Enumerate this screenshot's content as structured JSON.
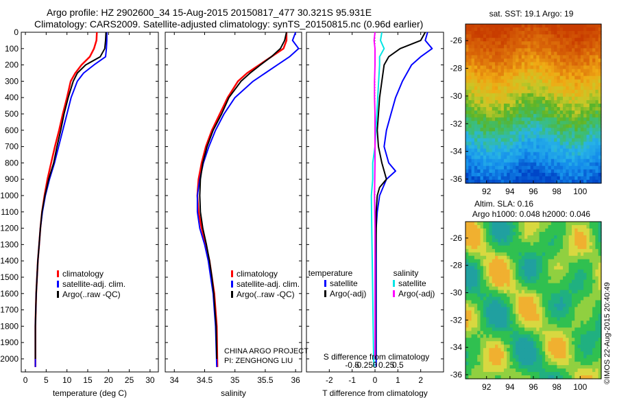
{
  "header": {
    "line1": "Argo profile: HZ 2902600_34 15-Aug-2015 20150817_477 30.321S 95.931E",
    "line2": "Climatology: CARS2009. Satellite-adjusted climatology: synTS_20150815.nc (0.96d earlier)"
  },
  "credit": {
    "project": "CHINA ARGO PROJECT",
    "pi": "PI: ZENGHONG LIU"
  },
  "copyright": "©IMOS 22-Aug-2015 20:40:49",
  "colors": {
    "climatology": "#ff0000",
    "satellite": "#0000ff",
    "argo": "#000000",
    "sal_satellite": "#00e5e5",
    "sal_argo": "#ff00ff"
  },
  "chart_data": [
    {
      "id": "temperature",
      "type": "line",
      "xlabel": "temperature (deg C)",
      "ylabel": "",
      "xlim": [
        -1,
        32
      ],
      "ylim": [
        2080,
        0
      ],
      "xticks": [
        0,
        5,
        10,
        15,
        20,
        25,
        30
      ],
      "yticks": [
        0,
        100,
        200,
        300,
        400,
        500,
        600,
        700,
        800,
        900,
        1000,
        1100,
        1200,
        1300,
        1400,
        1500,
        1600,
        1700,
        1800,
        1900,
        2000
      ],
      "legend": [
        "climatology",
        "satellite-adj. clim.",
        "Argo(..raw -QC)"
      ],
      "series": [
        {
          "name": "climatology",
          "color": "#ff0000",
          "x": [
            17.2,
            17.1,
            16.5,
            15.5,
            13.5,
            12.0,
            10.9,
            10.0,
            9.0,
            8.1,
            7.1,
            6.2,
            5.3,
            4.6,
            4.0,
            3.6,
            3.3,
            3.0,
            2.8,
            2.6,
            2.5,
            2.4,
            2.4
          ],
          "depth": [
            0,
            50,
            100,
            150,
            200,
            250,
            300,
            400,
            500,
            600,
            700,
            800,
            900,
            1000,
            1100,
            1200,
            1300,
            1400,
            1500,
            1600,
            1700,
            1800,
            2050
          ]
        },
        {
          "name": "satellite-adj. clim.",
          "color": "#0000ff",
          "x": [
            19.6,
            19.6,
            19.5,
            19.3,
            16.5,
            14.0,
            12.5,
            11.0,
            10.0,
            9.0,
            8.0,
            7.0,
            5.8,
            4.8,
            4.1,
            3.6,
            3.3,
            3.0,
            2.8,
            2.6,
            2.5,
            2.4,
            2.4
          ],
          "depth": [
            0,
            50,
            100,
            150,
            200,
            250,
            300,
            400,
            500,
            600,
            700,
            800,
            900,
            1000,
            1100,
            1200,
            1300,
            1400,
            1500,
            1600,
            1700,
            1800,
            2050
          ]
        },
        {
          "name": "Argo(..raw -QC)",
          "color": "#000000",
          "x": [
            19.4,
            19.3,
            19.1,
            18.0,
            14.5,
            12.5,
            11.5,
            10.3,
            9.3,
            8.5,
            7.6,
            6.8,
            5.6,
            4.7,
            4.0,
            3.6,
            3.3,
            3.0,
            2.8,
            2.6,
            2.5,
            2.4,
            2.4
          ],
          "depth": [
            0,
            50,
            100,
            150,
            200,
            250,
            300,
            400,
            500,
            600,
            700,
            800,
            900,
            1000,
            1100,
            1200,
            1300,
            1400,
            1500,
            1600,
            1700,
            1800,
            2000
          ]
        }
      ]
    },
    {
      "id": "salinity",
      "type": "line",
      "xlabel": "salinity",
      "ylabel": "",
      "xlim": [
        33.85,
        36.1
      ],
      "ylim": [
        2080,
        0
      ],
      "xticks": [
        34,
        34.5,
        35,
        35.5,
        36
      ],
      "xticklabels": [
        "34",
        "34.5",
        "35",
        "35.5",
        "36"
      ],
      "legend": [
        "climatology",
        "satellite-adj. clim.",
        "Argo(..raw -QC)"
      ],
      "series": [
        {
          "name": "climatology",
          "color": "#ff0000",
          "x": [
            35.85,
            35.85,
            35.8,
            35.6,
            35.4,
            35.2,
            35.05,
            34.88,
            34.75,
            34.62,
            34.52,
            34.45,
            34.4,
            34.38,
            34.4,
            34.45,
            34.52,
            34.58,
            34.62,
            34.66,
            34.68,
            34.7,
            34.71
          ],
          "depth": [
            0,
            50,
            100,
            150,
            200,
            250,
            300,
            400,
            500,
            600,
            700,
            800,
            900,
            1000,
            1100,
            1200,
            1300,
            1400,
            1500,
            1600,
            1700,
            1800,
            2050
          ]
        },
        {
          "name": "satellite-adj. clim.",
          "color": "#0000ff",
          "x": [
            36.0,
            35.95,
            36.05,
            35.9,
            35.7,
            35.5,
            35.3,
            35.0,
            34.82,
            34.68,
            34.57,
            34.48,
            34.42,
            34.38,
            34.38,
            34.42,
            34.5,
            34.56,
            34.6,
            34.64,
            34.66,
            34.68,
            34.7
          ],
          "depth": [
            0,
            50,
            100,
            150,
            200,
            250,
            300,
            400,
            500,
            600,
            700,
            800,
            900,
            1000,
            1100,
            1200,
            1300,
            1400,
            1500,
            1600,
            1700,
            1800,
            2050
          ]
        },
        {
          "name": "Argo(..raw -QC)",
          "color": "#000000",
          "x": [
            35.85,
            35.82,
            35.75,
            35.6,
            35.42,
            35.25,
            35.1,
            34.9,
            34.78,
            34.64,
            34.54,
            34.47,
            34.43,
            34.42,
            34.43,
            34.47,
            34.53,
            34.58,
            34.62,
            34.65,
            34.67,
            34.69,
            34.7
          ],
          "depth": [
            0,
            50,
            100,
            150,
            200,
            250,
            300,
            400,
            500,
            600,
            700,
            800,
            900,
            1000,
            1100,
            1200,
            1300,
            1400,
            1500,
            1600,
            1700,
            1800,
            2000
          ]
        }
      ]
    },
    {
      "id": "difference",
      "type": "line",
      "xlabel": "T difference from climatology",
      "xlabel_top": "S difference from climatology",
      "ylabel": "",
      "xlim": [
        -3.0,
        3.0
      ],
      "ylim": [
        2080,
        0
      ],
      "xticks": [
        -2,
        -1,
        0,
        1,
        2
      ],
      "s_ticks": [
        -0.5,
        -0.25,
        0,
        0.25,
        0.5
      ],
      "s_ticklabels": [
        "-0.5",
        "-0.25",
        "0",
        "0.25",
        "0.5"
      ],
      "legend_headers": [
        "temperature",
        "salinity"
      ],
      "legend": [
        "satellite",
        "Argo(-adj)",
        "satellite",
        "Argo(-adj)"
      ],
      "series": [
        {
          "name": "satellite",
          "quantity": "temperature",
          "color": "#0000ff",
          "x": [
            2.3,
            2.2,
            2.5,
            2.0,
            1.6,
            1.2,
            0.9,
            0.7,
            0.5,
            0.4,
            0.6,
            0.9,
            0.5,
            0.2,
            0.1,
            0.05,
            0.05,
            0.05,
            0.05,
            0.05,
            0.05
          ],
          "depth": [
            0,
            50,
            100,
            150,
            200,
            300,
            400,
            500,
            600,
            700,
            800,
            850,
            900,
            1000,
            1100,
            1200,
            1400,
            1600,
            1800,
            2000,
            2050
          ]
        },
        {
          "name": "Argo(-adj)",
          "quantity": "temperature",
          "color": "#000000",
          "x": [
            2.2,
            2.0,
            1.1,
            0.6,
            0.4,
            0.3,
            0.2,
            0.15,
            0.1,
            0.15,
            0.3,
            0.5,
            0.2,
            0.1,
            0.05,
            0.05,
            0.02,
            0.02,
            0.02,
            0.02
          ],
          "depth": [
            0,
            50,
            100,
            150,
            200,
            300,
            400,
            500,
            600,
            700,
            800,
            900,
            950,
            1000,
            1100,
            1200,
            1400,
            1600,
            1800,
            2000
          ]
        },
        {
          "name": "satellite",
          "quantity": "salinity",
          "color": "#00e5e5",
          "x": [
            0.15,
            0.12,
            0.2,
            0.1,
            0.1,
            0.08,
            0.06,
            0.04,
            0.02,
            0.0,
            -0.05,
            -0.05,
            -0.08,
            -0.07,
            -0.06,
            -0.05,
            -0.04,
            -0.03,
            -0.02
          ],
          "depth": [
            0,
            50,
            100,
            150,
            200,
            300,
            400,
            500,
            600,
            700,
            800,
            900,
            1000,
            1200,
            1400,
            1600,
            1800,
            2000,
            2050
          ]
        },
        {
          "name": "Argo(-adj)",
          "quantity": "salinity",
          "color": "#ff00ff",
          "x": [
            0.0,
            -0.02,
            0.0,
            0.0,
            -0.01,
            -0.01,
            0.0,
            0.0,
            0.0,
            -0.01,
            0.0,
            0.0,
            0.0,
            0.0
          ],
          "depth": [
            0,
            50,
            100,
            200,
            300,
            400,
            500,
            600,
            800,
            1000,
            1200,
            1400,
            1700,
            2000
          ]
        }
      ]
    },
    {
      "id": "sst-map",
      "type": "heatmap",
      "title": "sat. SST: 19.1 Argo: 19",
      "xticks": [
        92,
        94,
        96,
        98,
        100
      ],
      "yticks": [
        -26,
        -28,
        -30,
        -32,
        -34,
        -36
      ],
      "xlim": [
        90.2,
        101.8
      ],
      "ylim": [
        -36.3,
        -24.8
      ]
    },
    {
      "id": "sla-map",
      "type": "heatmap",
      "title": "Altim. SLA: 0.16",
      "subtitle": "Argo h1000: 0.048 h2000: 0.046",
      "xticks": [
        92,
        94,
        96,
        98,
        100
      ],
      "yticks": [
        -26,
        -28,
        -30,
        -32,
        -34,
        -36
      ],
      "xlim": [
        90.2,
        101.8
      ],
      "ylim": [
        -36.3,
        -24.8
      ]
    }
  ]
}
